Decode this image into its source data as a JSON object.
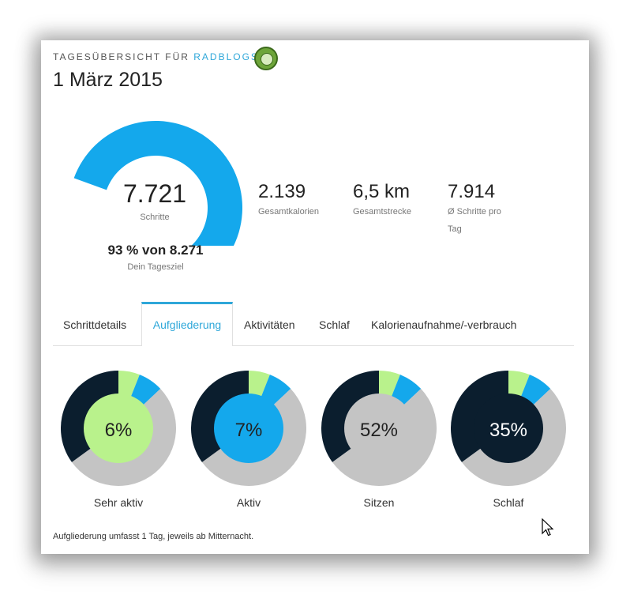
{
  "header": {
    "eyebrow_prefix": "TAGESÜBERSICHT FÜR",
    "eyebrow_user": "RADBLOGS",
    "date": "1 März 2015"
  },
  "steps": {
    "value": "7.721",
    "label": "Schritte",
    "goal_text": "93 % von 8.271",
    "goal_label": "Dein Tagesziel",
    "goal_fraction": 0.93,
    "color": "#14a8ec",
    "track_color": "#e6e6e6"
  },
  "stats": [
    {
      "value": "2.139",
      "label": "Gesamtkalorien"
    },
    {
      "value": "6,5 km",
      "label": "Gesamtstrecke"
    },
    {
      "value": "7.914",
      "label_line1": "Ø Schritte pro",
      "label_line2": "Tag"
    }
  ],
  "tabs": [
    {
      "label": "Schrittdetails",
      "active": false
    },
    {
      "label": "Aufgliederung",
      "active": true
    },
    {
      "label": "Aktivitäten",
      "active": false
    },
    {
      "label": "Schlaf",
      "active": false
    },
    {
      "label": "Kalorienaufnahme/-verbrauch",
      "active": false
    }
  ],
  "breakdown": {
    "segments": [
      {
        "percent": 6,
        "color": "#b9f28c"
      },
      {
        "percent": 7,
        "color": "#14a8ec"
      },
      {
        "percent": 52,
        "color": "#c4c4c4"
      },
      {
        "percent": 35,
        "color": "#0b1e2e"
      }
    ],
    "items": [
      {
        "label": "Sehr aktiv",
        "percent_text": "6%",
        "center_color": "#b9f28c",
        "text_color": "#222222"
      },
      {
        "label": "Aktiv",
        "percent_text": "7%",
        "center_color": "#14a8ec",
        "text_color": "#222222"
      },
      {
        "label": "Sitzen",
        "percent_text": "52%",
        "center_color": "#c4c4c4",
        "text_color": "#222222"
      },
      {
        "label": "Schlaf",
        "percent_text": "35%",
        "center_color": "#0b1e2e",
        "text_color": "#ffffff"
      }
    ],
    "footer": "Aufgliederung umfasst 1 Tag, jeweils ab Mitternacht."
  }
}
